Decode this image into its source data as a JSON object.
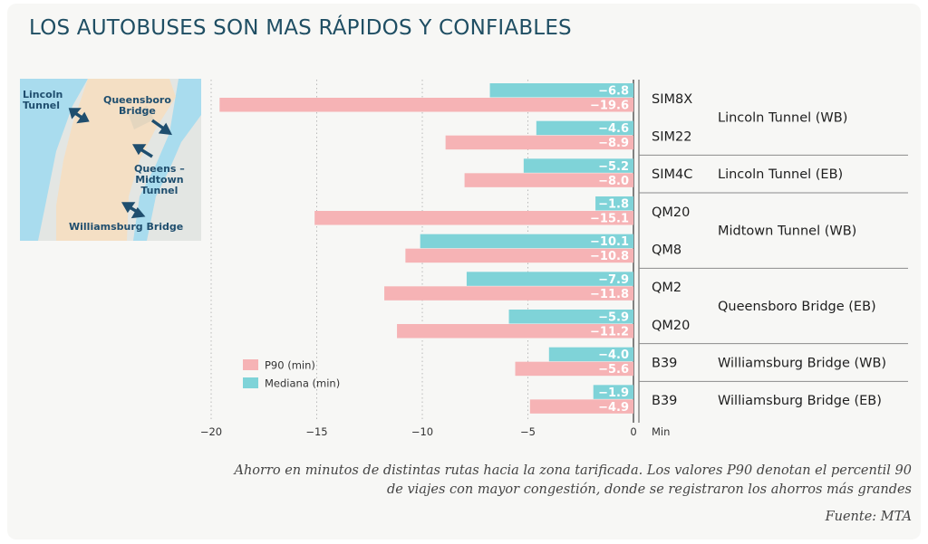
{
  "title": "LOS AUTOBUSES SON MAS RÁPIDOS Y CONFIABLES",
  "map": {
    "labels": {
      "lincoln": [
        "Lincoln",
        "Tunnel"
      ],
      "queensboro": [
        "Queensboro",
        "Bridge"
      ],
      "midtown": [
        "Queens –",
        "Midtown",
        "Tunnel"
      ],
      "williamsburg": [
        "Williamsburg Bridge"
      ]
    }
  },
  "chart_data": {
    "type": "bar",
    "orientation": "horizontal",
    "xlim": [
      -20,
      0
    ],
    "x_ticks": [
      "−20",
      "−15",
      "−10",
      "−5",
      "0"
    ],
    "x_unit_label": "Min",
    "grid": "vertical dotted",
    "legend_position": "bottom-left",
    "legend": [
      {
        "label": "P90 (min)",
        "color": "#f6b3b5"
      },
      {
        "label": "Mediana (min)",
        "color": "#7fd3d8"
      }
    ],
    "categories": [
      "SIM8X",
      "SIM22",
      "SIM4C",
      "QM20",
      "QM8",
      "QM2",
      "QM20",
      "B39",
      "B39"
    ],
    "series": [
      {
        "name": "Mediana (min)",
        "color": "#7fd3d8",
        "values": [
          -6.8,
          -4.6,
          -5.2,
          -1.8,
          -10.1,
          -7.9,
          -5.9,
          -4.0,
          -1.9
        ],
        "labels": [
          "−6.8",
          "−4.6",
          "−5.2",
          "−1.8",
          "−10.1",
          "−7.9",
          "−5.9",
          "−4.0",
          "−1.9"
        ]
      },
      {
        "name": "P90 (min)",
        "color": "#f6b3b5",
        "values": [
          -19.6,
          -8.9,
          -8.0,
          -15.1,
          -10.8,
          -11.8,
          -11.2,
          -5.6,
          -4.9
        ],
        "labels": [
          "−19.6",
          "−8.9",
          "−8.0",
          "−15.1",
          "−10.8",
          "−11.8",
          "−11.2",
          "−5.6",
          "−4.9"
        ]
      }
    ],
    "groups": [
      {
        "name": "Lincoln Tunnel (WB)",
        "routes": [
          0,
          1
        ]
      },
      {
        "name": "Lincoln Tunnel (EB)",
        "routes": [
          2
        ]
      },
      {
        "name": "Midtown Tunnel (WB)",
        "routes": [
          3,
          4
        ]
      },
      {
        "name": "Queensboro Bridge (EB)",
        "routes": [
          5,
          6
        ]
      },
      {
        "name": "Williamsburg Bridge (WB)",
        "routes": [
          7
        ]
      },
      {
        "name": "Williamsburg Bridge (EB)",
        "routes": [
          8
        ]
      }
    ]
  },
  "caption": {
    "line1": "Ahorro en minutos de distintas rutas hacia la zona tarificada. Los valores P90 denotan el percentil 90",
    "line2": "de viajes con mayor congestión, donde se registraron los ahorros más grandes"
  },
  "source": "Fuente: MTA"
}
